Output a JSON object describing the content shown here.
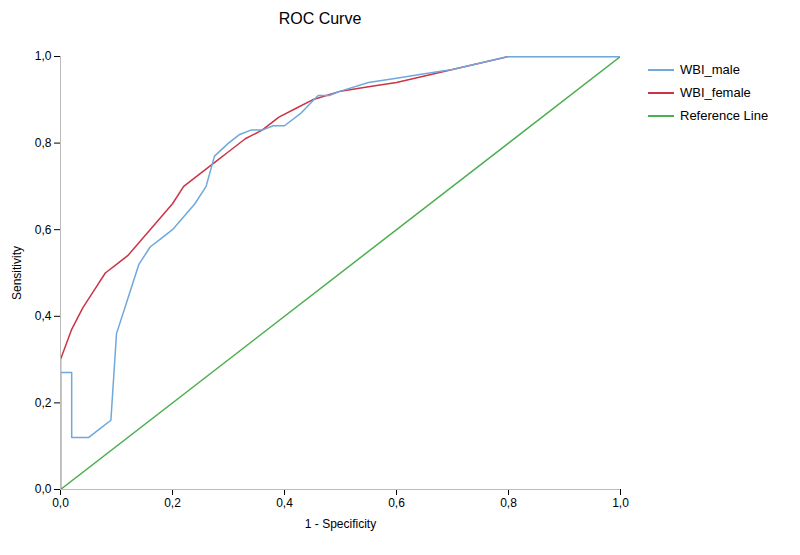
{
  "chart_data": {
    "type": "line",
    "title": "ROC Curve",
    "x_label": "1 - Specificity",
    "y_label": "Sensitivity",
    "series": [
      {
        "name": "WBI_male",
        "color": "#6FA8DC",
        "x": [
          0.0,
          0.0,
          0.02,
          0.02,
          0.05,
          0.07,
          0.09,
          0.1,
          0.12,
          0.14,
          0.16,
          0.18,
          0.2,
          0.22,
          0.24,
          0.26,
          0.275,
          0.3,
          0.32,
          0.34,
          0.36,
          0.38,
          0.4,
          0.43,
          0.46,
          0.48,
          0.5,
          0.55,
          0.6,
          0.65,
          0.7,
          0.8,
          0.85,
          1.0
        ],
        "values": [
          0.0,
          0.27,
          0.27,
          0.12,
          0.12,
          0.14,
          0.16,
          0.36,
          0.44,
          0.52,
          0.56,
          0.58,
          0.6,
          0.63,
          0.66,
          0.7,
          0.77,
          0.8,
          0.82,
          0.83,
          0.83,
          0.84,
          0.84,
          0.87,
          0.91,
          0.91,
          0.92,
          0.94,
          0.95,
          0.96,
          0.97,
          1.0,
          1.0,
          1.0
        ]
      },
      {
        "name": "WBI_female",
        "color": "#CC3344",
        "x": [
          0.0,
          0.0,
          0.02,
          0.04,
          0.06,
          0.08,
          0.1,
          0.12,
          0.14,
          0.16,
          0.18,
          0.2,
          0.22,
          0.25,
          0.28,
          0.3,
          0.33,
          0.36,
          0.39,
          0.42,
          0.45,
          0.475,
          0.5,
          0.55,
          0.6,
          0.7,
          0.8,
          1.0
        ],
        "values": [
          0.0,
          0.3,
          0.37,
          0.42,
          0.46,
          0.5,
          0.52,
          0.54,
          0.57,
          0.6,
          0.63,
          0.66,
          0.7,
          0.73,
          0.76,
          0.78,
          0.81,
          0.83,
          0.86,
          0.88,
          0.9,
          0.91,
          0.92,
          0.93,
          0.94,
          0.97,
          1.0,
          1.0
        ]
      },
      {
        "name": "Reference Line",
        "color": "#4CAF50",
        "x": [
          0.0,
          1.0
        ],
        "values": [
          0.0,
          1.0
        ]
      }
    ],
    "xlim": [
      0.0,
      1.0
    ],
    "ylim": [
      0.0,
      1.0
    ],
    "xticks": [
      {
        "value": 0.0,
        "label": "0,0"
      },
      {
        "value": 0.2,
        "label": "0,2"
      },
      {
        "value": 0.4,
        "label": "0,4"
      },
      {
        "value": 0.6,
        "label": "0,6"
      },
      {
        "value": 0.8,
        "label": "0,8"
      },
      {
        "value": 1.0,
        "label": "1,0"
      }
    ],
    "yticks": [
      {
        "value": 0.0,
        "label": "0,0"
      },
      {
        "value": 0.2,
        "label": "0,2"
      },
      {
        "value": 0.4,
        "label": "0,4"
      },
      {
        "value": 0.6,
        "label": "0,6"
      },
      {
        "value": 0.8,
        "label": "0,8"
      },
      {
        "value": 1.0,
        "label": "1,0"
      }
    ],
    "grid": false,
    "legend": "right"
  }
}
